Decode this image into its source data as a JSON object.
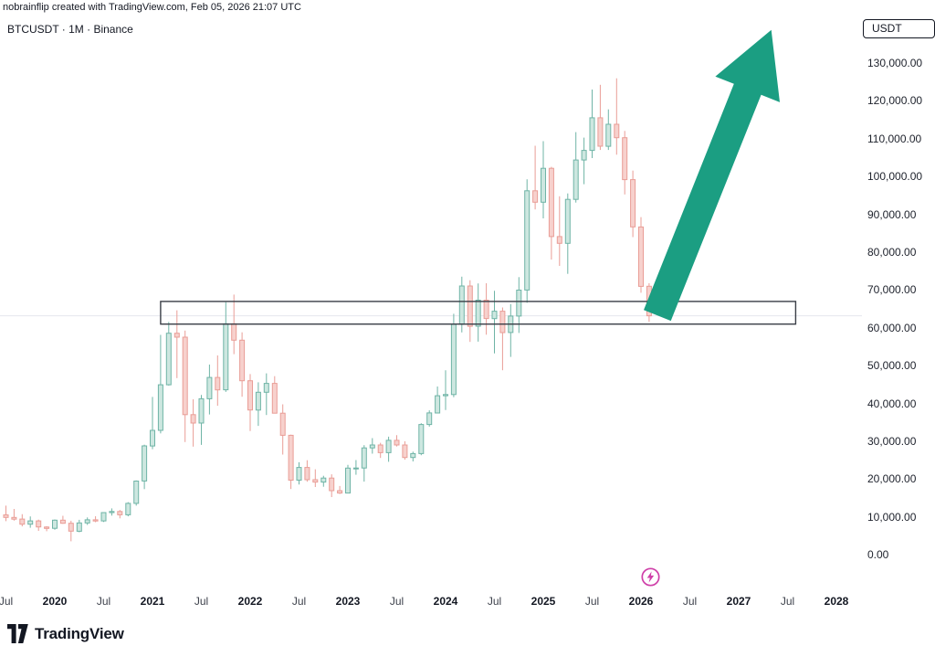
{
  "header": {
    "attribution": "nobrainflip created with TradingView.com, Feb 05, 2026 21:07 UTC",
    "symbol_line": "BTCUSDT · 1M · Binance"
  },
  "price_axis": {
    "currency": "USDT"
  },
  "footer": {
    "brand": "TradingView"
  },
  "colors": {
    "background": "#ffffff",
    "up_fill": "#cde7e0",
    "up_border": "#6fb4a6",
    "down_fill": "#f7d1cd",
    "down_border": "#e99d96",
    "arrow": "#1b9e82",
    "rect_border": "#3a3e47",
    "price_line": "#e4e7ed",
    "spark": "#cf3fa8",
    "text_dark": "#131722"
  },
  "chart_data": {
    "type": "candlestick",
    "title": "BTCUSDT · 1M · Binance",
    "symbol": "BTCUSDT",
    "interval": "1M",
    "exchange": "Binance",
    "price_axis_currency": "USDT",
    "ylim": [
      0,
      139000
    ],
    "current_price": 63400,
    "grid": "off",
    "price_ticks": [
      {
        "value": 130000,
        "label": "130,000.00"
      },
      {
        "value": 120000,
        "label": "120,000.00"
      },
      {
        "value": 110000,
        "label": "110,000.00"
      },
      {
        "value": 100000,
        "label": "100,000.00"
      },
      {
        "value": 90000,
        "label": "90,000.00"
      },
      {
        "value": 80000,
        "label": "80,000.00"
      },
      {
        "value": 70000,
        "label": "70,000.00"
      },
      {
        "value": 60000,
        "label": "60,000.00"
      },
      {
        "value": 50000,
        "label": "50,000.00"
      },
      {
        "value": 40000,
        "label": "40,000.00"
      },
      {
        "value": 30000,
        "label": "30,000.00"
      },
      {
        "value": 20000,
        "label": "20,000.00"
      },
      {
        "value": 10000,
        "label": "10,000.00"
      },
      {
        "value": 0,
        "label": "0.00"
      }
    ],
    "time_ticks": [
      {
        "text": "Jul",
        "month": "2019-07"
      },
      {
        "text": "2020",
        "month": "2020-01"
      },
      {
        "text": "Jul",
        "month": "2020-07"
      },
      {
        "text": "2021",
        "month": "2021-01"
      },
      {
        "text": "Jul",
        "month": "2021-07"
      },
      {
        "text": "2022",
        "month": "2022-01"
      },
      {
        "text": "Jul",
        "month": "2022-07"
      },
      {
        "text": "2023",
        "month": "2023-01"
      },
      {
        "text": "Jul",
        "month": "2023-07"
      },
      {
        "text": "2024",
        "month": "2024-01"
      },
      {
        "text": "Jul",
        "month": "2024-07"
      },
      {
        "text": "2025",
        "month": "2025-01"
      },
      {
        "text": "Jul",
        "month": "2025-07"
      },
      {
        "text": "2026",
        "month": "2026-01"
      },
      {
        "text": "Jul",
        "month": "2026-07"
      },
      {
        "text": "2027",
        "month": "2027-01"
      },
      {
        "text": "Jul",
        "month": "2027-07"
      },
      {
        "text": "2028",
        "month": "2028-01"
      }
    ],
    "candle_fields": [
      "month",
      "open",
      "high",
      "low",
      "close"
    ],
    "candles": [
      [
        "2019-07",
        10760,
        13200,
        9080,
        10085
      ],
      [
        "2019-08",
        10085,
        12325,
        9230,
        9630
      ],
      [
        "2019-09",
        9630,
        10949,
        7700,
        8285
      ],
      [
        "2019-10",
        8285,
        10350,
        7350,
        9150
      ],
      [
        "2019-11",
        9150,
        9505,
        6515,
        7550
      ],
      [
        "2019-12",
        7550,
        7760,
        6435,
        7195
      ],
      [
        "2020-01",
        7195,
        9550,
        6850,
        9350
      ],
      [
        "2020-02",
        9350,
        10500,
        8400,
        8525
      ],
      [
        "2020-03",
        8525,
        9200,
        3780,
        6440
      ],
      [
        "2020-04",
        6440,
        9460,
        6150,
        8630
      ],
      [
        "2020-05",
        8630,
        10070,
        8100,
        9450
      ],
      [
        "2020-06",
        9450,
        10380,
        8830,
        9140
      ],
      [
        "2020-07",
        9140,
        11440,
        8900,
        11350
      ],
      [
        "2020-08",
        11350,
        12480,
        10550,
        11650
      ],
      [
        "2020-09",
        11650,
        12050,
        9825,
        10780
      ],
      [
        "2020-10",
        10780,
        14100,
        10370,
        13800
      ],
      [
        "2020-11",
        13800,
        19860,
        13190,
        19700
      ],
      [
        "2020-12",
        19700,
        29300,
        17570,
        28990
      ],
      [
        "2021-01",
        28990,
        41950,
        28130,
        33110
      ],
      [
        "2021-02",
        33110,
        58350,
        32300,
        45160
      ],
      [
        "2021-03",
        45160,
        61780,
        44950,
        58780
      ],
      [
        "2021-04",
        58780,
        64850,
        46930,
        57750
      ],
      [
        "2021-05",
        57750,
        59500,
        30000,
        37255
      ],
      [
        "2021-06",
        37255,
        41330,
        28800,
        35040
      ],
      [
        "2021-07",
        35040,
        42450,
        29270,
        41460
      ],
      [
        "2021-08",
        41460,
        50500,
        37300,
        47100
      ],
      [
        "2021-09",
        47100,
        52920,
        39600,
        43820
      ],
      [
        "2021-10",
        43820,
        67000,
        43285,
        61300
      ],
      [
        "2021-11",
        61300,
        69000,
        53250,
        56950
      ],
      [
        "2021-12",
        56950,
        59040,
        42000,
        46215
      ],
      [
        "2022-01",
        46215,
        47990,
        32915,
        38480
      ],
      [
        "2022-02",
        38480,
        45820,
        34300,
        43190
      ],
      [
        "2022-03",
        43190,
        48190,
        37155,
        45525
      ],
      [
        "2022-04",
        45525,
        47440,
        37580,
        37640
      ],
      [
        "2022-05",
        37640,
        40000,
        26700,
        31790
      ],
      [
        "2022-06",
        31790,
        31970,
        17600,
        19925
      ],
      [
        "2022-07",
        19925,
        24670,
        18780,
        23290
      ],
      [
        "2022-08",
        23290,
        25200,
        19520,
        20050
      ],
      [
        "2022-09",
        20050,
        22800,
        18125,
        19425
      ],
      [
        "2022-10",
        19425,
        21085,
        18190,
        20490
      ],
      [
        "2022-11",
        20490,
        21480,
        15475,
        17165
      ],
      [
        "2022-12",
        17165,
        18385,
        16255,
        16540
      ],
      [
        "2023-01",
        16540,
        23960,
        16490,
        23125
      ],
      [
        "2023-02",
        23125,
        25250,
        21350,
        23140
      ],
      [
        "2023-03",
        23140,
        29185,
        19550,
        28465
      ],
      [
        "2023-04",
        28465,
        31050,
        26940,
        29230
      ],
      [
        "2023-05",
        29230,
        29820,
        25800,
        27210
      ],
      [
        "2023-06",
        27210,
        31430,
        24795,
        30470
      ],
      [
        "2023-07",
        30470,
        31850,
        28860,
        29230
      ],
      [
        "2023-08",
        29230,
        30240,
        25350,
        25930
      ],
      [
        "2023-09",
        25930,
        27480,
        24900,
        26960
      ],
      [
        "2023-10",
        26960,
        35000,
        26535,
        34650
      ],
      [
        "2023-11",
        34650,
        38400,
        34100,
        37710
      ],
      [
        "2023-12",
        37710,
        44700,
        37615,
        42265
      ],
      [
        "2024-01",
        42265,
        48970,
        38500,
        42580
      ],
      [
        "2024-02",
        42580,
        63935,
        41880,
        61130
      ],
      [
        "2024-03",
        61130,
        73750,
        59005,
        71280
      ],
      [
        "2024-04",
        71280,
        72800,
        56500,
        60635
      ],
      [
        "2024-05",
        60635,
        71950,
        56555,
        67530
      ],
      [
        "2024-06",
        67530,
        71997,
        58400,
        62670
      ],
      [
        "2024-07",
        62670,
        70000,
        53485,
        64620
      ],
      [
        "2024-08",
        64620,
        65600,
        49000,
        58970
      ],
      [
        "2024-09",
        58970,
        66500,
        52530,
        63330
      ],
      [
        "2024-10",
        63330,
        73620,
        58870,
        70200
      ],
      [
        "2024-11",
        70200,
        99500,
        66835,
        96450
      ],
      [
        "2024-12",
        96450,
        108365,
        91530,
        93430
      ],
      [
        "2025-01",
        93430,
        109590,
        89160,
        102405
      ],
      [
        "2025-02",
        102405,
        102800,
        78255,
        84350
      ],
      [
        "2025-03",
        84350,
        95000,
        76600,
        82550
      ],
      [
        "2025-04",
        82550,
        95770,
        74500,
        94180
      ],
      [
        "2025-05",
        94180,
        111980,
        93340,
        104600
      ],
      [
        "2025-06",
        104600,
        110530,
        98200,
        107140
      ],
      [
        "2025-07",
        107140,
        123240,
        105115,
        115760
      ],
      [
        "2025-08",
        115760,
        124500,
        107250,
        108235
      ],
      [
        "2025-09",
        108235,
        118000,
        107270,
        114050
      ],
      [
        "2025-10",
        114050,
        126200,
        106000,
        110500
      ],
      [
        "2025-11",
        110500,
        112300,
        95500,
        99400
      ],
      [
        "2025-12",
        99400,
        101800,
        84200,
        86900
      ],
      [
        "2026-01",
        86900,
        89500,
        69500,
        71200
      ],
      [
        "2026-02",
        71200,
        72000,
        61800,
        63400
      ]
    ],
    "annotations": {
      "support_zone_rect": {
        "time_start": "2021-02",
        "time_end": "2027-08",
        "price_top": 67200,
        "price_bottom": 61200
      },
      "projection_arrow": {
        "from_time": "2026-03",
        "from_price": 63500,
        "to_time": "2027-05",
        "to_price": 139000,
        "direction": "up-right"
      }
    }
  }
}
